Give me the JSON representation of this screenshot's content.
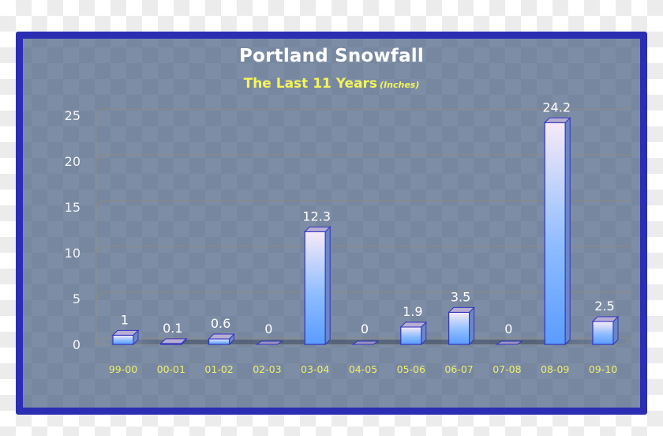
{
  "chart_data": {
    "type": "bar",
    "title": "Portland Snowfall",
    "subtitle": "The Last 11 Years",
    "units": "(Inches)",
    "xlabel": "",
    "ylabel": "",
    "categories": [
      "99-00",
      "00-01",
      "01-02",
      "02-03",
      "03-04",
      "04-05",
      "05-06",
      "06-07",
      "07-08",
      "08-09",
      "09-10"
    ],
    "values": [
      1,
      0.1,
      0.6,
      0,
      12.3,
      0,
      1.9,
      3.5,
      0,
      24.2,
      2.5
    ],
    "data_labels": [
      "1",
      "0.1",
      "0.6",
      "0",
      "12.3",
      "0",
      "1.9",
      "3.5",
      "0",
      "24.2",
      "2.5"
    ],
    "ylim": [
      0,
      25
    ],
    "yticks": [
      0,
      5,
      10,
      15,
      20,
      25
    ],
    "grid": true,
    "legend": "none",
    "style": "3d-column"
  },
  "colors": {
    "frame_border": "#2b2db3",
    "title": "#ffffff",
    "subtitle": "#f4f45a",
    "x_tick_labels": "#f0ef6a",
    "bar_top_gradient": "#f7eaf7",
    "bar_bottom_gradient": "#5a9cff",
    "bar_outline": "#3035c0"
  }
}
